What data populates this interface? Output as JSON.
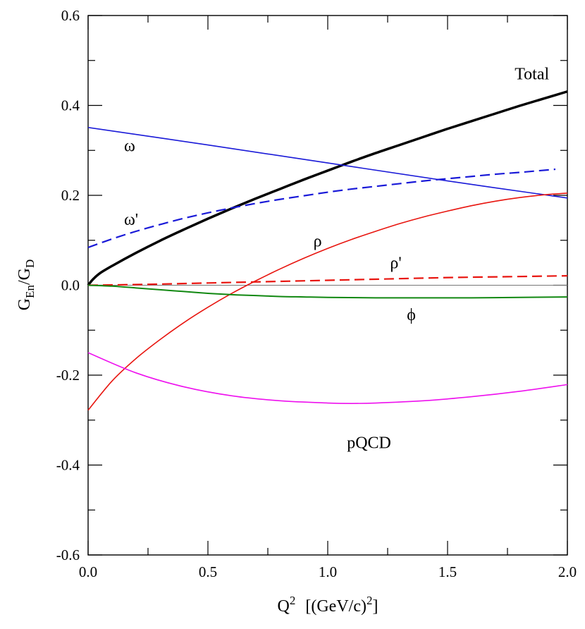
{
  "chart_data": {
    "type": "line",
    "title": "",
    "xlabel": {
      "base": "Q",
      "sup": "2",
      "unit": "[(GeV/c)",
      "unit_sup": "2",
      "unit_close": "]"
    },
    "ylabel": {
      "base": "G",
      "sub1": "En",
      "slash": "/G",
      "sub2": "D"
    },
    "xlim": [
      0.0,
      2.0
    ],
    "ylim": [
      -0.6,
      0.6
    ],
    "xticks": [
      "0.0",
      "0.5",
      "1.0",
      "1.5",
      "2.0"
    ],
    "yticks": [
      "-0.6",
      "-0.4",
      "-0.2",
      "0.0",
      "0.2",
      "0.4",
      "0.6"
    ],
    "grid": false,
    "legend": "none",
    "reference_line_y": 0.0,
    "series": [
      {
        "name": "Total",
        "label_at": [
          1.78,
          0.458
        ],
        "color": "#000000",
        "width": 3.5,
        "dash": "",
        "x": [
          0,
          0.02,
          0.05,
          0.1,
          0.2,
          0.3,
          0.4,
          0.5,
          0.6,
          0.7,
          0.8,
          0.9,
          1.0,
          1.1,
          1.2,
          1.3,
          1.4,
          1.5,
          1.6,
          1.7,
          1.8,
          1.9,
          2.0
        ],
        "y": [
          0.0,
          0.013,
          0.027,
          0.043,
          0.072,
          0.099,
          0.124,
          0.148,
          0.171,
          0.193,
          0.214,
          0.235,
          0.255,
          0.275,
          0.294,
          0.312,
          0.33,
          0.348,
          0.365,
          0.382,
          0.399,
          0.415,
          0.431
        ]
      },
      {
        "name": "ω",
        "label_at": [
          0.15,
          0.298
        ],
        "color": "#1a1ad8",
        "width": 1.6,
        "dash": "",
        "x": [
          0,
          0.5,
          1.0,
          1.5,
          2.0
        ],
        "y": [
          0.351,
          0.312,
          0.272,
          0.232,
          0.194
        ]
      },
      {
        "name": "ω'",
        "label_at": [
          0.15,
          0.134
        ],
        "color": "#1a1ad8",
        "width": 2.2,
        "dash": "14,7",
        "x": [
          0,
          0.1,
          0.2,
          0.3,
          0.4,
          0.5,
          0.6,
          0.7,
          0.8,
          0.9,
          1.0,
          1.1,
          1.2,
          1.3,
          1.4,
          1.5,
          1.6,
          1.7,
          1.8,
          1.95
        ],
        "y": [
          0.084,
          0.103,
          0.12,
          0.135,
          0.149,
          0.161,
          0.172,
          0.182,
          0.191,
          0.199,
          0.207,
          0.214,
          0.22,
          0.226,
          0.232,
          0.237,
          0.242,
          0.247,
          0.251,
          0.258
        ]
      },
      {
        "name": "ρ",
        "label_at": [
          0.94,
          0.086
        ],
        "color": "#e8150f",
        "width": 1.6,
        "dash": "",
        "x": [
          0,
          0.1,
          0.2,
          0.3,
          0.4,
          0.5,
          0.6,
          0.7,
          0.8,
          0.9,
          1.0,
          1.1,
          1.2,
          1.3,
          1.4,
          1.5,
          1.6,
          1.7,
          1.8,
          1.9,
          2.0
        ],
        "y": [
          -0.278,
          -0.213,
          -0.163,
          -0.121,
          -0.083,
          -0.049,
          -0.018,
          0.01,
          0.036,
          0.06,
          0.082,
          0.102,
          0.12,
          0.137,
          0.152,
          0.165,
          0.177,
          0.187,
          0.195,
          0.201,
          0.205
        ]
      },
      {
        "name": "ρ'",
        "label_at": [
          1.26,
          0.038
        ],
        "color": "#e8150f",
        "width": 2.2,
        "dash": "14,7",
        "x": [
          0,
          0.25,
          0.5,
          0.75,
          1.0,
          1.25,
          1.5,
          1.75,
          2.0
        ],
        "y": [
          0.0,
          0.002,
          0.005,
          0.008,
          0.011,
          0.014,
          0.017,
          0.019,
          0.021
        ]
      },
      {
        "name": "ϕ",
        "label_at": [
          1.33,
          -0.078
        ],
        "color": "#118811",
        "width": 2.0,
        "dash": "",
        "x": [
          0,
          0.1,
          0.2,
          0.3,
          0.4,
          0.5,
          0.6,
          0.7,
          0.8,
          0.9,
          1.0,
          1.2,
          1.4,
          1.6,
          1.8,
          2.0
        ],
        "y": [
          0.0,
          -0.002,
          -0.006,
          -0.01,
          -0.014,
          -0.018,
          -0.021,
          -0.023,
          -0.025,
          -0.026,
          -0.027,
          -0.028,
          -0.028,
          -0.028,
          -0.027,
          -0.026
        ]
      },
      {
        "name": "pQCD",
        "label_at": [
          1.08,
          -0.362
        ],
        "color": "#ee11ee",
        "width": 1.6,
        "dash": "",
        "x": [
          0,
          0.2,
          0.4,
          0.6,
          0.8,
          1.0,
          1.1,
          1.2,
          1.4,
          1.6,
          1.8,
          2.0
        ],
        "y": [
          -0.15,
          -0.195,
          -0.226,
          -0.246,
          -0.257,
          -0.262,
          -0.263,
          -0.262,
          -0.257,
          -0.248,
          -0.236,
          -0.221
        ]
      }
    ]
  }
}
